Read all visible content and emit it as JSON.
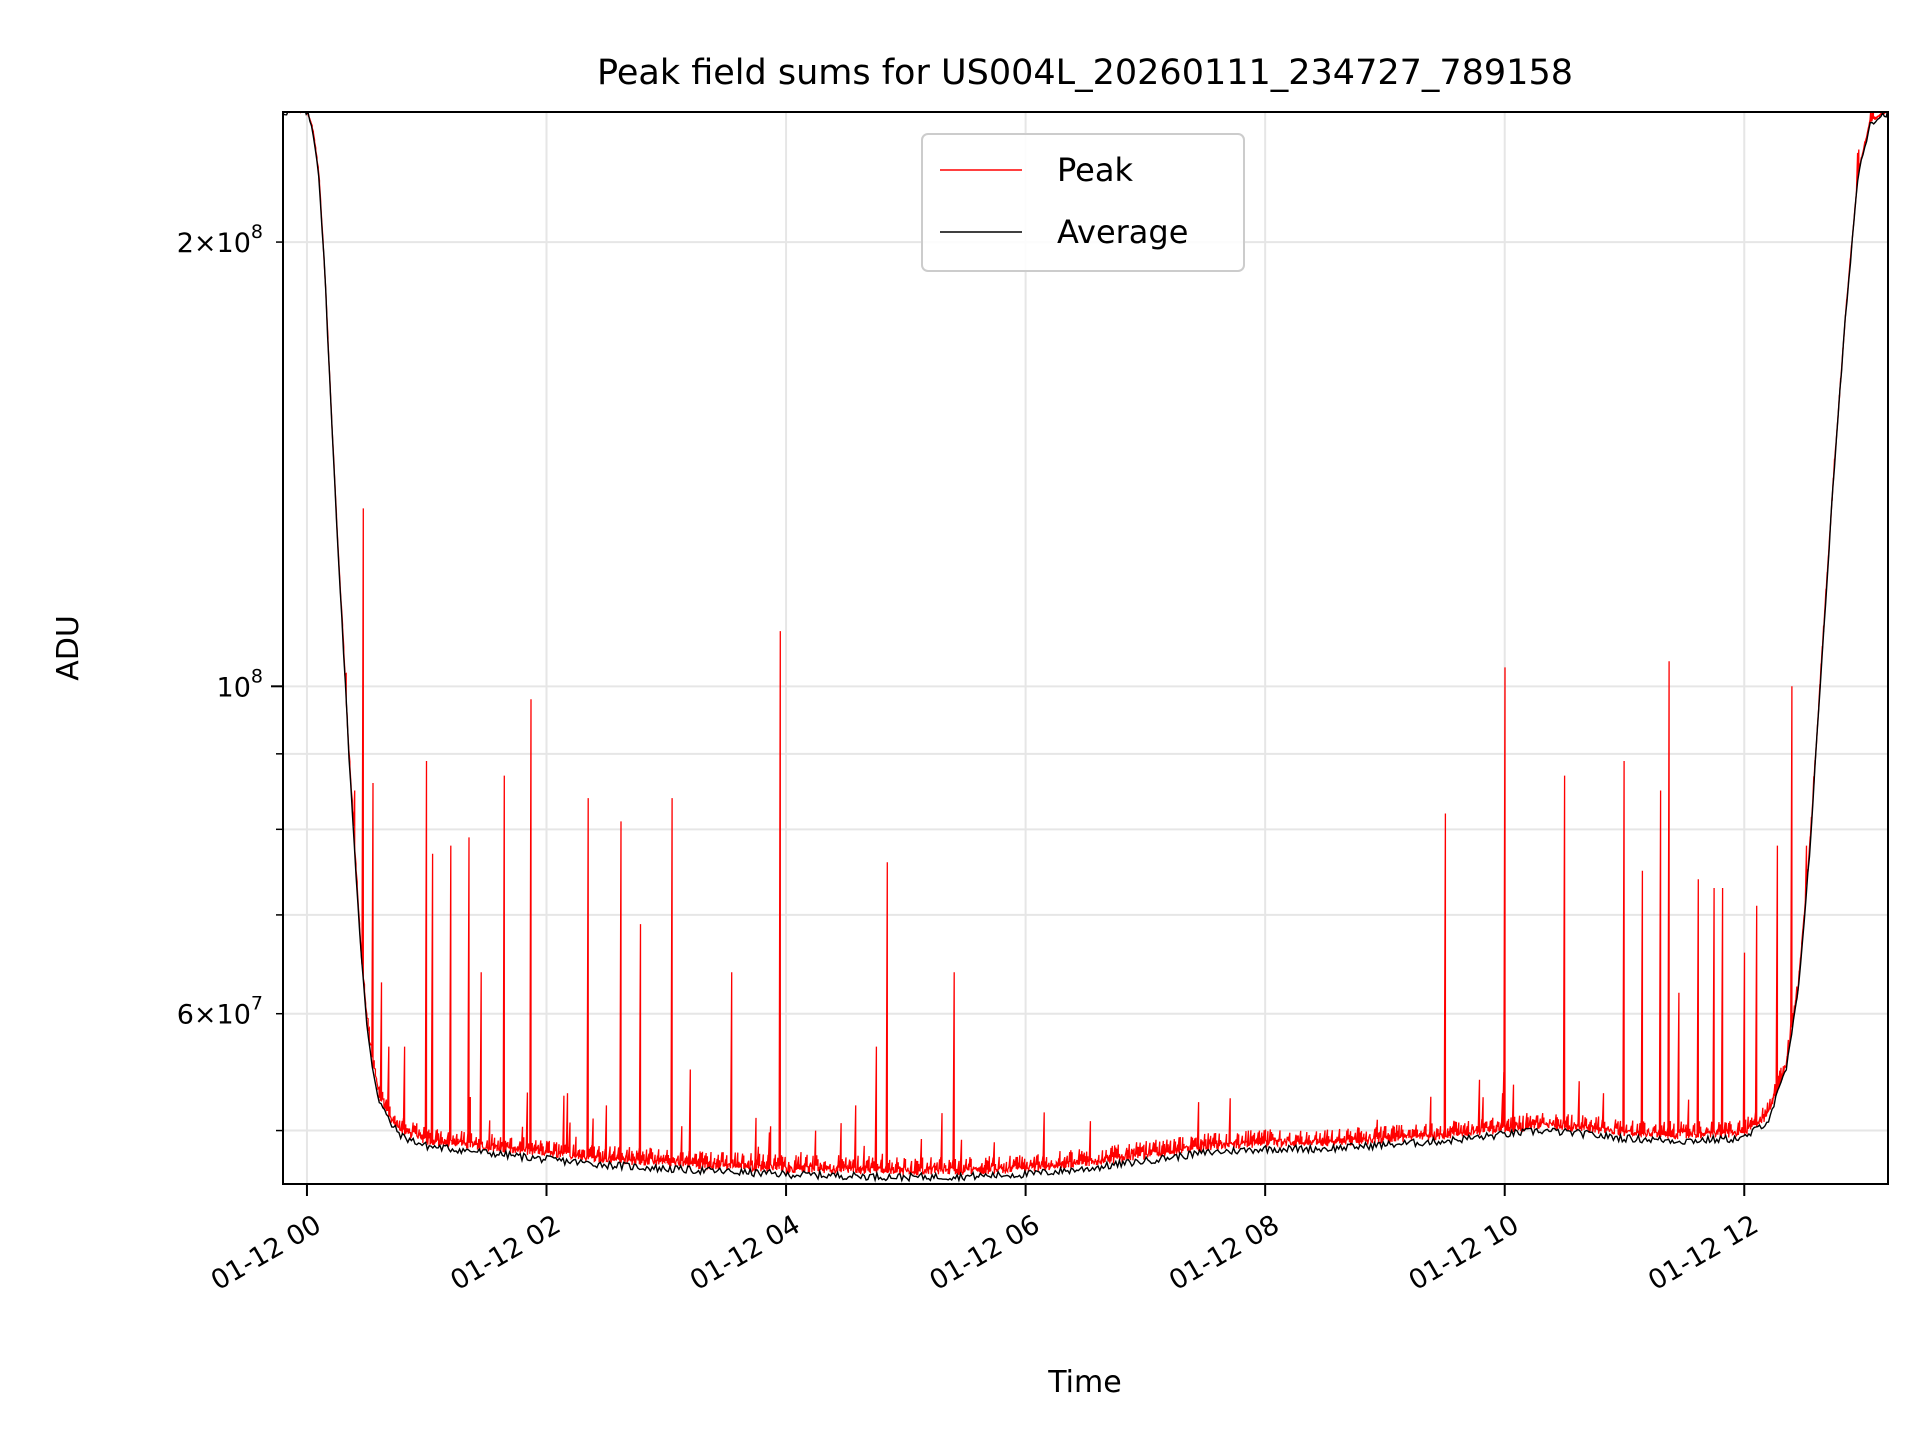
{
  "chart_data": {
    "type": "line",
    "title": "Peak field sums for US004L_20260111_234727_789158",
    "xlabel": "Time",
    "ylabel": "ADU",
    "x_unit": "hours since 01-12 00:00",
    "xlim": [
      -0.2,
      13.2
    ],
    "ylim": [
      46000000,
      245000000
    ],
    "yscale": "log",
    "grid": true,
    "legend_position": "upper center",
    "x_ticks": [
      {
        "value": 0,
        "label": "01-12 00"
      },
      {
        "value": 2,
        "label": "01-12 02"
      },
      {
        "value": 4,
        "label": "01-12 04"
      },
      {
        "value": 6,
        "label": "01-12 06"
      },
      {
        "value": 8,
        "label": "01-12 08"
      },
      {
        "value": 10,
        "label": "01-12 10"
      },
      {
        "value": 12,
        "label": "01-12 12"
      }
    ],
    "y_major_ticks": [
      {
        "value": 100000000,
        "base": "10",
        "exp": "8"
      }
    ],
    "y_minor_ticks": [
      {
        "value": 60000000,
        "mant": "6",
        "exp": "7",
        "labeled": true
      },
      {
        "value": 200000000,
        "mant": "2",
        "exp": "8",
        "labeled": true
      },
      {
        "value": 50000000,
        "labeled": false
      },
      {
        "value": 70000000,
        "labeled": false
      },
      {
        "value": 80000000,
        "labeled": false
      },
      {
        "value": 90000000,
        "labeled": false
      }
    ],
    "times_symbol": "×",
    "series": [
      {
        "name": "Peak",
        "color": "#ff0000",
        "baseline_offset": 1000000,
        "spikes": [
          [
            0.33,
            102000000
          ],
          [
            0.4,
            85000000
          ],
          [
            0.47,
            132000000
          ],
          [
            0.55,
            86000000
          ],
          [
            0.62,
            63000000
          ],
          [
            0.68,
            57000000
          ],
          [
            0.82,
            57000000
          ],
          [
            1.0,
            89000000
          ],
          [
            1.05,
            77000000
          ],
          [
            1.2,
            78000000
          ],
          [
            1.35,
            79000000
          ],
          [
            1.45,
            64000000
          ],
          [
            1.65,
            87000000
          ],
          [
            1.87,
            98000000
          ],
          [
            2.18,
            53000000
          ],
          [
            2.35,
            84000000
          ],
          [
            2.5,
            52000000
          ],
          [
            2.62,
            81000000
          ],
          [
            2.78,
            69000000
          ],
          [
            3.05,
            84000000
          ],
          [
            3.2,
            55000000
          ],
          [
            3.55,
            64000000
          ],
          [
            3.75,
            51000000
          ],
          [
            3.95,
            109000000
          ],
          [
            4.25,
            50000000
          ],
          [
            4.58,
            52000000
          ],
          [
            4.75,
            57000000
          ],
          [
            4.85,
            76000000
          ],
          [
            5.4,
            64000000
          ],
          [
            7.95,
            50000000
          ],
          [
            9.5,
            82000000
          ],
          [
            9.98,
            53000000
          ],
          [
            10.0,
            103000000
          ],
          [
            10.5,
            87000000
          ],
          [
            10.62,
            54000000
          ],
          [
            10.82,
            53000000
          ],
          [
            11.0,
            89000000
          ],
          [
            11.15,
            75000000
          ],
          [
            11.3,
            85000000
          ],
          [
            11.37,
            104000000
          ],
          [
            11.45,
            62000000
          ],
          [
            11.62,
            74000000
          ],
          [
            11.75,
            73000000
          ],
          [
            11.82,
            73000000
          ],
          [
            12.0,
            66000000
          ],
          [
            12.1,
            71000000
          ],
          [
            12.28,
            78000000
          ],
          [
            12.4,
            100000000
          ],
          [
            12.52,
            78000000
          ],
          [
            12.65,
            86000000
          ],
          [
            12.75,
            135000000
          ]
        ]
      },
      {
        "name": "Average",
        "color": "#000000",
        "points": [
          [
            -0.2,
            245000000
          ],
          [
            0.0,
            245000000
          ],
          [
            0.05,
            238000000
          ],
          [
            0.1,
            222000000
          ],
          [
            0.15,
            190000000
          ],
          [
            0.2,
            155000000
          ],
          [
            0.25,
            128000000
          ],
          [
            0.3,
            108000000
          ],
          [
            0.35,
            90000000
          ],
          [
            0.4,
            77000000
          ],
          [
            0.45,
            66000000
          ],
          [
            0.5,
            59000000
          ],
          [
            0.55,
            55000000
          ],
          [
            0.6,
            52500000
          ],
          [
            0.7,
            50500000
          ],
          [
            0.8,
            49500000
          ],
          [
            1.0,
            48800000
          ],
          [
            1.5,
            48300000
          ],
          [
            2.0,
            47800000
          ],
          [
            2.5,
            47400000
          ],
          [
            3.0,
            47100000
          ],
          [
            3.5,
            46900000
          ],
          [
            4.0,
            46700000
          ],
          [
            4.5,
            46600000
          ],
          [
            5.0,
            46500000
          ],
          [
            5.5,
            46550000
          ],
          [
            6.0,
            46700000
          ],
          [
            6.5,
            47100000
          ],
          [
            7.0,
            47700000
          ],
          [
            7.5,
            48300000
          ],
          [
            8.0,
            48600000
          ],
          [
            8.5,
            48600000
          ],
          [
            9.0,
            48900000
          ],
          [
            9.5,
            49200000
          ],
          [
            10.0,
            49700000
          ],
          [
            10.3,
            50000000
          ],
          [
            10.6,
            49800000
          ],
          [
            11.0,
            49400000
          ],
          [
            11.5,
            49200000
          ],
          [
            12.0,
            49400000
          ],
          [
            12.2,
            50800000
          ],
          [
            12.35,
            55000000
          ],
          [
            12.45,
            62000000
          ],
          [
            12.55,
            78000000
          ],
          [
            12.65,
            105000000
          ],
          [
            12.75,
            140000000
          ],
          [
            12.85,
            180000000
          ],
          [
            12.95,
            222000000
          ],
          [
            13.05,
            241000000
          ],
          [
            13.2,
            245000000
          ]
        ]
      }
    ]
  }
}
